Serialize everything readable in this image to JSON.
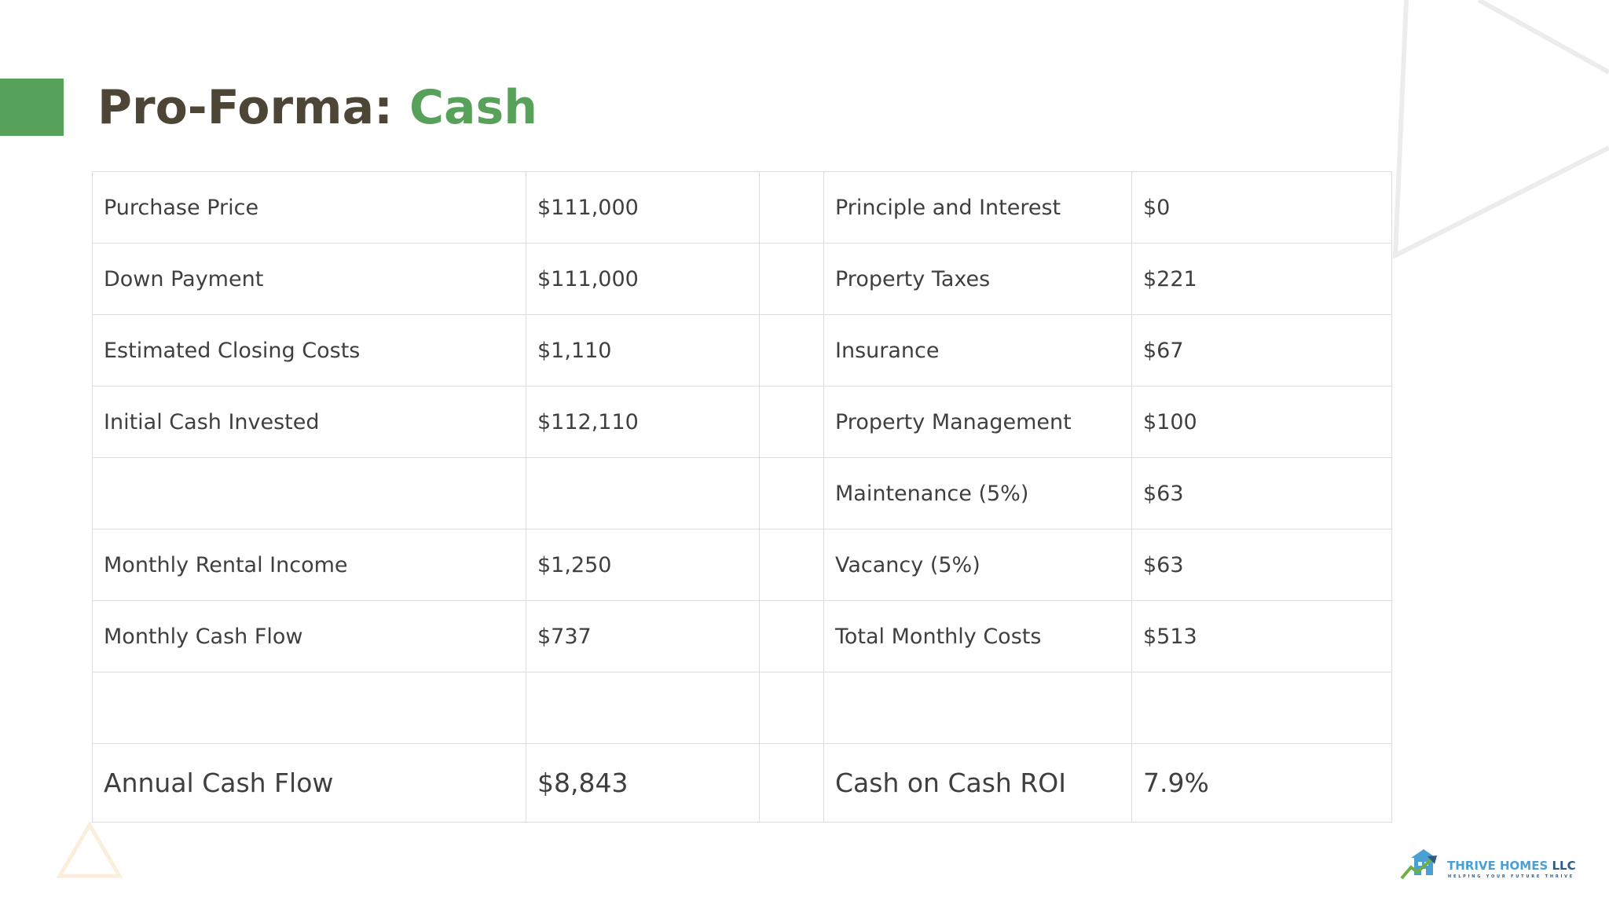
{
  "slide": {
    "title_main": "Pro-Forma: ",
    "title_accent": "Cash",
    "accent_color": "#57a15a",
    "title_color": "#4d4536"
  },
  "table": {
    "rows": [
      {
        "label_left": "Purchase Price",
        "value_left": "$111,000",
        "label_right": "Principle and Interest",
        "value_right": "$0"
      },
      {
        "label_left": "Down Payment",
        "value_left": "$111,000",
        "label_right": "Property Taxes",
        "value_right": "$221"
      },
      {
        "label_left": "Estimated Closing Costs",
        "value_left": "$1,110",
        "label_right": "Insurance",
        "value_right": "$67"
      },
      {
        "label_left": "Initial Cash Invested",
        "value_left": "$112,110",
        "label_right": "Property Management",
        "value_right": "$100"
      },
      {
        "label_left": "",
        "value_left": "",
        "label_right": "Maintenance (5%)",
        "value_right": "$63"
      },
      {
        "label_left": "Monthly Rental Income",
        "value_left": "$1,250",
        "label_right": "Vacancy (5%)",
        "value_right": "$63"
      },
      {
        "label_left": "Monthly Cash Flow",
        "value_left": "$737",
        "label_right": "Total Monthly Costs",
        "value_right": "$513"
      },
      {
        "label_left": "",
        "value_left": "",
        "label_right": "",
        "value_right": ""
      },
      {
        "label_left": "Annual Cash Flow",
        "value_left": "$8,843",
        "label_right": "Cash on Cash ROI",
        "value_right": "7.9%"
      }
    ]
  },
  "logo": {
    "name": "THRIVE HOMES",
    "suffix": " LLC",
    "tagline": "HELPING YOUR FUTURE THRIVE",
    "icon": "house-arrow-icon",
    "brand_blue": "#4a9fd4",
    "brand_navy": "#2e5b86",
    "brand_green": "#6fae45"
  }
}
